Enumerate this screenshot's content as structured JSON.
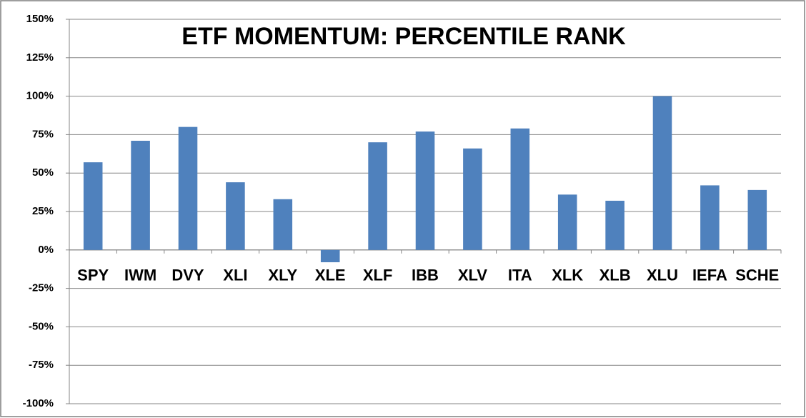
{
  "chart_data": {
    "type": "bar",
    "title": "ETF MOMENTUM: PERCENTILE RANK",
    "categories": [
      "SPY",
      "IWM",
      "DVY",
      "XLI",
      "XLY",
      "XLE",
      "XLF",
      "IBB",
      "XLV",
      "ITA",
      "XLK",
      "XLB",
      "XLU",
      "IEFA",
      "SCHE"
    ],
    "values": [
      57,
      71,
      80,
      44,
      33,
      -8,
      70,
      77,
      66,
      79,
      36,
      32,
      100,
      42,
      39
    ],
    "color": "#4f81bd",
    "ylim": [
      -100,
      150
    ],
    "yticks": [
      {
        "value": -100,
        "label": "-100%"
      },
      {
        "value": -75,
        "label": "-75%"
      },
      {
        "value": -50,
        "label": "-50%"
      },
      {
        "value": -25,
        "label": "-25%"
      },
      {
        "value": 0,
        "label": "0%"
      },
      {
        "value": 25,
        "label": "25%"
      },
      {
        "value": 50,
        "label": "50%"
      },
      {
        "value": 75,
        "label": "75%"
      },
      {
        "value": 100,
        "label": "100%"
      },
      {
        "value": 125,
        "label": "125%"
      },
      {
        "value": 150,
        "label": "150%"
      }
    ],
    "grid": true
  }
}
